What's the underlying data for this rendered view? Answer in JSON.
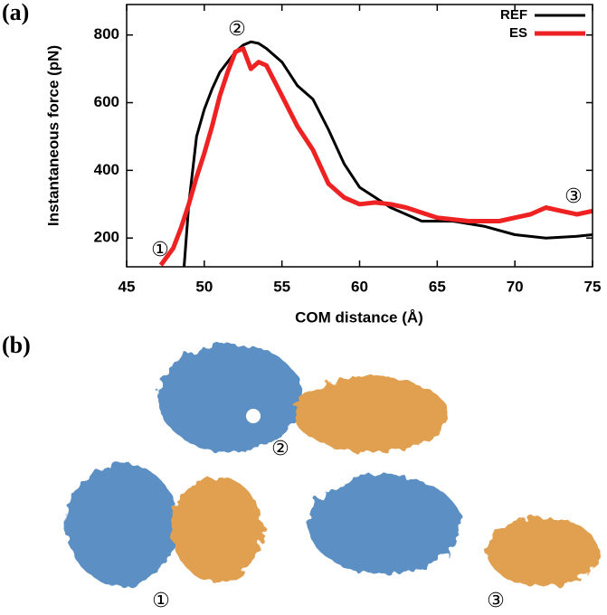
{
  "panel_labels": [
    "(a)",
    "(b)"
  ],
  "chart_data": {
    "type": "line",
    "x_label": "COM distance (Å)",
    "y_label": "Instantaneous force (pN)",
    "xlim": [
      45,
      75
    ],
    "xticks": [
      45,
      50,
      55,
      60,
      65,
      70,
      75
    ],
    "ylim": [
      115,
      890
    ],
    "yticks": [
      200,
      400,
      600,
      800
    ],
    "legend": "upper right",
    "annotations": [
      "①",
      "②",
      "③"
    ],
    "series": [
      {
        "name": "REF",
        "color": "#000000",
        "x": [
          48.7,
          49,
          49.5,
          50,
          50.5,
          51,
          51.5,
          52,
          52.5,
          53,
          53.5,
          54,
          55,
          56,
          57,
          58,
          59,
          60,
          61,
          62,
          64,
          66,
          68,
          70,
          72,
          74,
          75
        ],
        "values": [
          115,
          300,
          500,
          580,
          640,
          690,
          720,
          750,
          770,
          780,
          775,
          760,
          720,
          650,
          610,
          520,
          420,
          350,
          320,
          290,
          250,
          250,
          235,
          210,
          200,
          205,
          210
        ]
      },
      {
        "name": "ES",
        "color": "#ee2222",
        "x": [
          47.2,
          48,
          48.5,
          49,
          49.5,
          50,
          50.5,
          51,
          51.5,
          52,
          52.5,
          53,
          53.5,
          54,
          55,
          56,
          57,
          58,
          59,
          60,
          61,
          62,
          63,
          65,
          67,
          69,
          70,
          71,
          72,
          73,
          74,
          75
        ],
        "values": [
          120,
          170,
          230,
          300,
          380,
          450,
          530,
          620,
          690,
          750,
          760,
          700,
          720,
          710,
          620,
          530,
          460,
          360,
          320,
          300,
          305,
          300,
          290,
          260,
          250,
          250,
          260,
          270,
          290,
          280,
          270,
          280
        ]
      }
    ]
  },
  "panel_b": {
    "state_labels": [
      "①",
      "②",
      "③"
    ]
  }
}
